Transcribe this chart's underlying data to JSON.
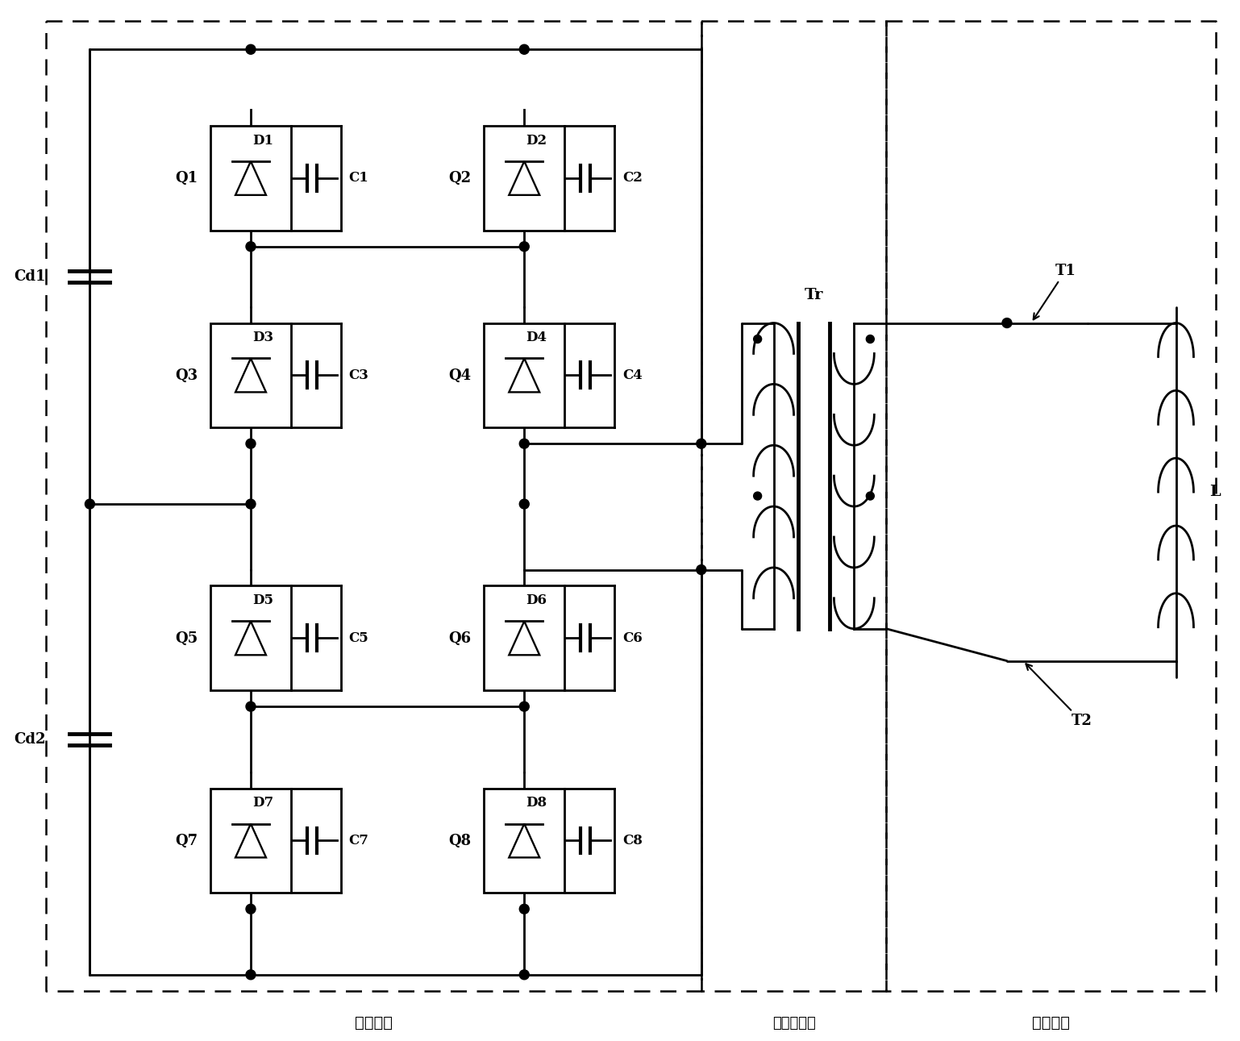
{
  "bg_color": "#ffffff",
  "fig_width": 15.38,
  "fig_height": 12.91,
  "labels": {
    "voltage_unit": "电压单元",
    "transformer_unit": "变压器单元",
    "current_unit": "电流单元"
  },
  "switches_col1": [
    {
      "q": "Q1",
      "d": "D1",
      "c": "C1"
    },
    {
      "q": "Q3",
      "d": "D3",
      "c": "C3"
    },
    {
      "q": "Q5",
      "d": "D5",
      "c": "C5"
    },
    {
      "q": "Q7",
      "d": "D7",
      "c": "C7"
    }
  ],
  "switches_col2": [
    {
      "q": "Q2",
      "d": "D2",
      "c": "C2"
    },
    {
      "q": "Q4",
      "d": "D4",
      "c": "C4"
    },
    {
      "q": "Q6",
      "d": "D6",
      "c": "C6"
    },
    {
      "q": "Q8",
      "d": "D8",
      "c": "C8"
    }
  ]
}
